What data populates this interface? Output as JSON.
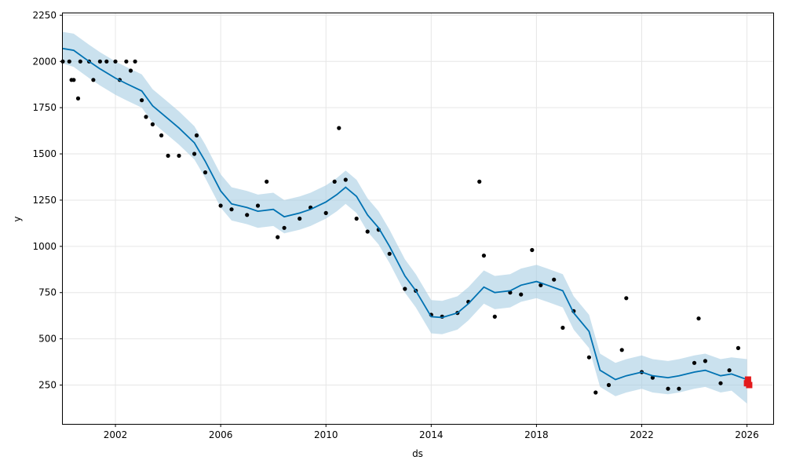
{
  "chart_data": {
    "type": "line",
    "title": "",
    "xlabel": "ds",
    "ylabel": "y",
    "x_ticks": [
      2002,
      2006,
      2010,
      2014,
      2018,
      2022,
      2026
    ],
    "y_ticks": [
      250,
      500,
      750,
      1000,
      1250,
      1500,
      1750,
      2000,
      2250
    ],
    "xlim": [
      "2000-01-01",
      "2026-12-31"
    ],
    "ylim": [
      40,
      2260
    ],
    "grid": true,
    "colors": {
      "forecast": "#0072B2",
      "interval": "#a6cde3",
      "observed": "#000000",
      "future": "#e31a1c"
    },
    "series": [
      {
        "kind": "forecast",
        "x": [
          "2000-01-01",
          "2000-06-01",
          "2001-01-01",
          "2001-06-01",
          "2002-01-01",
          "2002-06-01",
          "2003-01-01",
          "2003-06-01",
          "2004-01-01",
          "2004-06-01",
          "2005-01-01",
          "2005-06-01",
          "2006-01-01",
          "2006-06-01",
          "2007-01-01",
          "2007-06-01",
          "2008-01-01",
          "2008-06-01",
          "2009-01-01",
          "2009-06-01",
          "2010-01-01",
          "2010-06-01",
          "2010-10-01",
          "2011-03-01",
          "2011-08-01",
          "2012-01-01",
          "2012-06-01",
          "2013-01-01",
          "2013-06-01",
          "2014-01-01",
          "2014-06-01",
          "2015-01-01",
          "2015-06-01",
          "2016-01-01",
          "2016-06-01",
          "2017-01-01",
          "2017-06-01",
          "2018-01-01",
          "2018-06-01",
          "2019-01-01",
          "2019-06-01",
          "2020-01-01",
          "2020-06-01",
          "2021-01-01",
          "2021-06-01",
          "2022-01-01",
          "2022-06-01",
          "2023-01-01",
          "2023-06-01",
          "2024-01-01",
          "2024-06-01",
          "2025-01-01",
          "2025-06-01",
          "2026-01-01"
        ],
        "y": [
          2070,
          2060,
          2000,
          1960,
          1910,
          1880,
          1840,
          1760,
          1690,
          1640,
          1560,
          1460,
          1300,
          1230,
          1210,
          1190,
          1200,
          1160,
          1180,
          1200,
          1240,
          1280,
          1320,
          1270,
          1170,
          1100,
          1000,
          840,
          760,
          620,
          615,
          640,
          690,
          780,
          750,
          760,
          790,
          810,
          790,
          760,
          640,
          540,
          330,
          280,
          300,
          320,
          300,
          290,
          300,
          320,
          330,
          300,
          310,
          280
        ]
      }
    ],
    "interval": {
      "x": [
        "2000-01-01",
        "2000-06-01",
        "2001-01-01",
        "2001-06-01",
        "2002-01-01",
        "2002-06-01",
        "2003-01-01",
        "2003-06-01",
        "2004-01-01",
        "2004-06-01",
        "2005-01-01",
        "2005-06-01",
        "2006-01-01",
        "2006-06-01",
        "2007-01-01",
        "2007-06-01",
        "2008-01-01",
        "2008-06-01",
        "2009-01-01",
        "2009-06-01",
        "2010-01-01",
        "2010-06-01",
        "2010-10-01",
        "2011-03-01",
        "2011-08-01",
        "2012-01-01",
        "2012-06-01",
        "2013-01-01",
        "2013-06-01",
        "2014-01-01",
        "2014-06-01",
        "2015-01-01",
        "2015-06-01",
        "2016-01-01",
        "2016-06-01",
        "2017-01-01",
        "2017-06-01",
        "2018-01-01",
        "2018-06-01",
        "2019-01-01",
        "2019-06-01",
        "2020-01-01",
        "2020-06-01",
        "2021-01-01",
        "2021-06-01",
        "2022-01-01",
        "2022-06-01",
        "2023-01-01",
        "2023-06-01",
        "2024-01-01",
        "2024-06-01",
        "2025-01-01",
        "2025-06-01",
        "2026-01-01"
      ],
      "lower": [
        1990,
        1970,
        1910,
        1870,
        1820,
        1790,
        1750,
        1670,
        1600,
        1550,
        1470,
        1370,
        1210,
        1140,
        1120,
        1100,
        1110,
        1070,
        1090,
        1110,
        1150,
        1190,
        1230,
        1180,
        1080,
        1010,
        910,
        750,
        670,
        530,
        525,
        550,
        600,
        690,
        660,
        670,
        700,
        720,
        700,
        670,
        550,
        450,
        240,
        190,
        210,
        230,
        210,
        200,
        210,
        230,
        240,
        210,
        220,
        150
      ],
      "upper": [
        2160,
        2150,
        2090,
        2050,
        2000,
        1970,
        1930,
        1850,
        1780,
        1730,
        1650,
        1550,
        1390,
        1320,
        1300,
        1280,
        1290,
        1250,
        1270,
        1290,
        1330,
        1370,
        1410,
        1360,
        1260,
        1190,
        1090,
        930,
        850,
        710,
        705,
        730,
        780,
        870,
        840,
        850,
        880,
        900,
        880,
        850,
        730,
        630,
        420,
        370,
        390,
        410,
        390,
        380,
        390,
        410,
        420,
        390,
        400,
        390
      ]
    },
    "observed": [
      {
        "x": "2000-01-01",
        "y": 2000
      },
      {
        "x": "2000-04-01",
        "y": 2000
      },
      {
        "x": "2000-05-01",
        "y": 1900
      },
      {
        "x": "2000-06-01",
        "y": 1900
      },
      {
        "x": "2000-08-01",
        "y": 1800
      },
      {
        "x": "2000-09-01",
        "y": 2000
      },
      {
        "x": "2001-01-01",
        "y": 2000
      },
      {
        "x": "2001-03-01",
        "y": 1900
      },
      {
        "x": "2001-06-01",
        "y": 2000
      },
      {
        "x": "2001-09-01",
        "y": 2000
      },
      {
        "x": "2002-01-01",
        "y": 2000
      },
      {
        "x": "2002-03-01",
        "y": 1900
      },
      {
        "x": "2002-06-01",
        "y": 2000
      },
      {
        "x": "2002-08-01",
        "y": 1950
      },
      {
        "x": "2002-10-01",
        "y": 2000
      },
      {
        "x": "2003-01-01",
        "y": 1790
      },
      {
        "x": "2003-03-01",
        "y": 1700
      },
      {
        "x": "2003-06-01",
        "y": 1660
      },
      {
        "x": "2003-10-01",
        "y": 1600
      },
      {
        "x": "2004-01-01",
        "y": 1490
      },
      {
        "x": "2004-06-01",
        "y": 1490
      },
      {
        "x": "2005-01-01",
        "y": 1500
      },
      {
        "x": "2005-02-01",
        "y": 1600
      },
      {
        "x": "2005-06-01",
        "y": 1400
      },
      {
        "x": "2006-01-01",
        "y": 1220
      },
      {
        "x": "2006-06-01",
        "y": 1200
      },
      {
        "x": "2007-01-01",
        "y": 1170
      },
      {
        "x": "2007-06-01",
        "y": 1220
      },
      {
        "x": "2007-10-01",
        "y": 1350
      },
      {
        "x": "2008-03-01",
        "y": 1050
      },
      {
        "x": "2008-06-01",
        "y": 1100
      },
      {
        "x": "2009-01-01",
        "y": 1150
      },
      {
        "x": "2009-06-01",
        "y": 1210
      },
      {
        "x": "2010-01-01",
        "y": 1180
      },
      {
        "x": "2010-05-01",
        "y": 1350
      },
      {
        "x": "2010-07-01",
        "y": 1640
      },
      {
        "x": "2010-10-01",
        "y": 1360
      },
      {
        "x": "2011-03-01",
        "y": 1150
      },
      {
        "x": "2011-08-01",
        "y": 1080
      },
      {
        "x": "2012-01-01",
        "y": 1090
      },
      {
        "x": "2012-06-01",
        "y": 960
      },
      {
        "x": "2013-01-01",
        "y": 770
      },
      {
        "x": "2013-06-01",
        "y": 760
      },
      {
        "x": "2014-01-01",
        "y": 630
      },
      {
        "x": "2014-06-01",
        "y": 620
      },
      {
        "x": "2015-01-01",
        "y": 640
      },
      {
        "x": "2015-06-01",
        "y": 700
      },
      {
        "x": "2015-11-01",
        "y": 1350
      },
      {
        "x": "2016-01-01",
        "y": 950
      },
      {
        "x": "2016-06-01",
        "y": 620
      },
      {
        "x": "2017-01-01",
        "y": 750
      },
      {
        "x": "2017-06-01",
        "y": 740
      },
      {
        "x": "2017-11-01",
        "y": 980
      },
      {
        "x": "2018-03-01",
        "y": 790
      },
      {
        "x": "2018-09-01",
        "y": 820
      },
      {
        "x": "2019-01-01",
        "y": 560
      },
      {
        "x": "2019-06-01",
        "y": 650
      },
      {
        "x": "2020-01-01",
        "y": 400
      },
      {
        "x": "2020-04-01",
        "y": 210
      },
      {
        "x": "2020-10-01",
        "y": 250
      },
      {
        "x": "2021-04-01",
        "y": 440
      },
      {
        "x": "2021-06-01",
        "y": 720
      },
      {
        "x": "2022-01-01",
        "y": 320
      },
      {
        "x": "2022-06-01",
        "y": 290
      },
      {
        "x": "2023-01-01",
        "y": 230
      },
      {
        "x": "2023-06-01",
        "y": 230
      },
      {
        "x": "2024-01-01",
        "y": 370
      },
      {
        "x": "2024-03-01",
        "y": 610
      },
      {
        "x": "2024-06-01",
        "y": 380
      },
      {
        "x": "2025-01-01",
        "y": 260
      },
      {
        "x": "2025-05-01",
        "y": 330
      },
      {
        "x": "2025-09-01",
        "y": 450
      }
    ],
    "future_points": [
      {
        "x": "2026-01-01",
        "y": 260
      },
      {
        "x": "2026-01-15",
        "y": 280
      },
      {
        "x": "2026-02-01",
        "y": 250
      }
    ]
  }
}
